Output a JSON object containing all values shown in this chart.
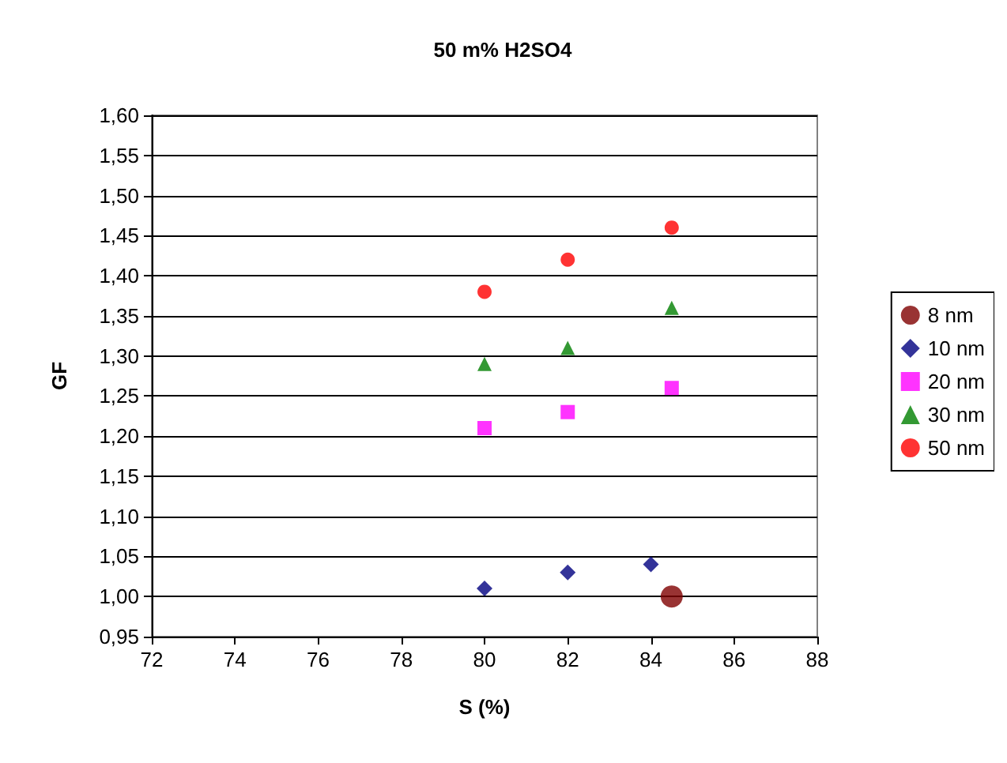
{
  "chart_data": {
    "type": "scatter",
    "title": "50 m% H2SO4",
    "xlabel": "S (%)",
    "ylabel": "GF",
    "xlim": [
      72,
      88
    ],
    "xticks": [
      72,
      74,
      76,
      78,
      80,
      82,
      84,
      86,
      88
    ],
    "ylim": [
      0.95,
      1.6
    ],
    "yticks": [
      {
        "value": 0.95,
        "label": "0,95"
      },
      {
        "value": 1.0,
        "label": "1,00"
      },
      {
        "value": 1.05,
        "label": "1,05"
      },
      {
        "value": 1.1,
        "label": "1,10"
      },
      {
        "value": 1.15,
        "label": "1,15"
      },
      {
        "value": 1.2,
        "label": "1,20"
      },
      {
        "value": 1.25,
        "label": "1,25"
      },
      {
        "value": 1.3,
        "label": "1,30"
      },
      {
        "value": 1.35,
        "label": "1,35"
      },
      {
        "value": 1.4,
        "label": "1,40"
      },
      {
        "value": 1.45,
        "label": "1,45"
      },
      {
        "value": 1.5,
        "label": "1,50"
      },
      {
        "value": 1.55,
        "label": "1,55"
      },
      {
        "value": 1.6,
        "label": "1,60"
      }
    ],
    "grid": "y",
    "legend": "right",
    "series": [
      {
        "name": "8 nm",
        "color": "#800000",
        "marker": "circle",
        "x": [
          84.5
        ],
        "values": [
          1.0
        ]
      },
      {
        "name": "10 nm",
        "color": "#000080",
        "marker": "diamond",
        "x": [
          80,
          82,
          84
        ],
        "values": [
          1.01,
          1.03,
          1.04
        ]
      },
      {
        "name": "20 nm",
        "color": "#ff00ff",
        "marker": "square",
        "x": [
          80,
          82,
          84.5
        ],
        "values": [
          1.21,
          1.23,
          1.26
        ]
      },
      {
        "name": "30 nm",
        "color": "#008000",
        "marker": "triangle",
        "x": [
          80,
          82,
          84.5
        ],
        "values": [
          1.29,
          1.31,
          1.36
        ]
      },
      {
        "name": "50 nm",
        "color": "#ff0000",
        "marker": "circle",
        "x": [
          80,
          82,
          84.5
        ],
        "values": [
          1.38,
          1.42,
          1.46
        ]
      }
    ]
  }
}
